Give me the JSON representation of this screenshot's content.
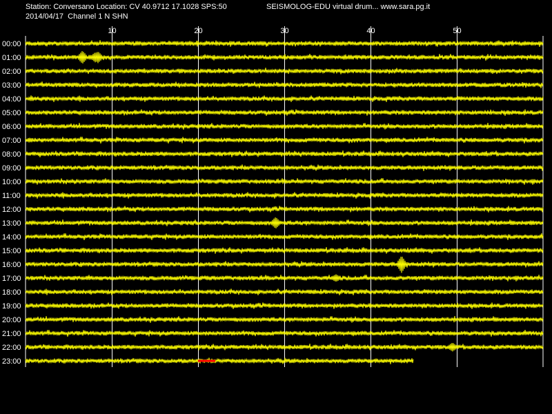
{
  "header": {
    "station_line": "Station: Conversano Location: CV 40.9712 17.1028 SPS:50",
    "date_line": "2014/04/17  Channel 1 N SHN",
    "program_line": "SEISMOLOG-EDU virtual drum... www.sara.pg.it"
  },
  "colors": {
    "background": "#000000",
    "trace": "#ffff00",
    "marker": "#ff0000",
    "grid": "#ffffff",
    "text": "#ffffff"
  },
  "chart_data": {
    "type": "line",
    "title": "",
    "xlabel": "",
    "ylabel": "",
    "xlim": [
      0,
      60
    ],
    "x_ticks": [
      "10",
      "20",
      "30",
      "40",
      "50"
    ],
    "x_tick_values": [
      10,
      20,
      30,
      40,
      50
    ],
    "grid": true,
    "rows": [
      {
        "label": "00:00",
        "end_minute": 60
      },
      {
        "label": "01:00",
        "end_minute": 60
      },
      {
        "label": "02:00",
        "end_minute": 60
      },
      {
        "label": "03:00",
        "end_minute": 60
      },
      {
        "label": "04:00",
        "end_minute": 60
      },
      {
        "label": "05:00",
        "end_minute": 60
      },
      {
        "label": "06:00",
        "end_minute": 60
      },
      {
        "label": "07:00",
        "end_minute": 60
      },
      {
        "label": "08:00",
        "end_minute": 60
      },
      {
        "label": "09:00",
        "end_minute": 60
      },
      {
        "label": "10:00",
        "end_minute": 60
      },
      {
        "label": "11:00",
        "end_minute": 60
      },
      {
        "label": "12:00",
        "end_minute": 60
      },
      {
        "label": "13:00",
        "end_minute": 60
      },
      {
        "label": "14:00",
        "end_minute": 60
      },
      {
        "label": "15:00",
        "end_minute": 60
      },
      {
        "label": "16:00",
        "end_minute": 60
      },
      {
        "label": "17:00",
        "end_minute": 60
      },
      {
        "label": "18:00",
        "end_minute": 60
      },
      {
        "label": "19:00",
        "end_minute": 60
      },
      {
        "label": "20:00",
        "end_minute": 60
      },
      {
        "label": "21:00",
        "end_minute": 60
      },
      {
        "label": "22:00",
        "end_minute": 60
      },
      {
        "label": "23:00",
        "end_minute": 45
      }
    ],
    "events": [
      {
        "row": "01:00",
        "minute": 6.6,
        "amplitude": 8
      },
      {
        "row": "01:00",
        "minute": 8.1,
        "amplitude": 6
      },
      {
        "row": "01:00",
        "minute": 8.4,
        "amplitude": 7
      },
      {
        "row": "13:00",
        "minute": 29.0,
        "amplitude": 7
      },
      {
        "row": "16:00",
        "minute": 43.6,
        "amplitude": 11
      },
      {
        "row": "17:00",
        "minute": 36.0,
        "amplitude": 4
      },
      {
        "row": "22:00",
        "minute": 49.5,
        "amplitude": 5
      }
    ],
    "marker": {
      "row": "23:00",
      "start_minute": 20.0,
      "end_minute": 22.0
    }
  }
}
